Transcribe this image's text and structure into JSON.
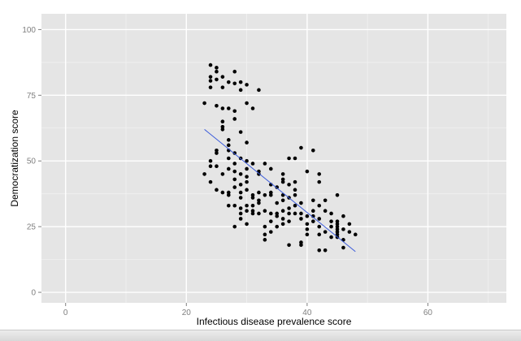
{
  "chart_data": {
    "type": "scatter",
    "title": "",
    "xlabel": "Infectious disease prevalence score",
    "ylabel": "Democratization score",
    "xlim": [
      -4,
      73
    ],
    "ylim": [
      -4,
      106
    ],
    "x_ticks": [
      0,
      20,
      40,
      60
    ],
    "y_ticks": [
      0,
      25,
      50,
      75,
      100
    ],
    "grid": true,
    "background": "#e5e5e5",
    "grid_color": "#ffffff",
    "point_color": "#000000",
    "fit_color": "#3b5bdb",
    "trend_line": {
      "type": "linear",
      "x": [
        23,
        48
      ],
      "y": [
        62,
        15.5
      ]
    },
    "points": [
      [
        24,
        86.5
      ],
      [
        25,
        85.5
      ],
      [
        25,
        84
      ],
      [
        26,
        82
      ],
      [
        24,
        82
      ],
      [
        24,
        80.5
      ],
      [
        25,
        81
      ],
      [
        27,
        80
      ],
      [
        28,
        79.5
      ],
      [
        29,
        80
      ],
      [
        30,
        79
      ],
      [
        28,
        84
      ],
      [
        26,
        78
      ],
      [
        29,
        77
      ],
      [
        32,
        77
      ],
      [
        24,
        78
      ],
      [
        23,
        72
      ],
      [
        25,
        71
      ],
      [
        26,
        70
      ],
      [
        27,
        70
      ],
      [
        28,
        69
      ],
      [
        31,
        70
      ],
      [
        30,
        72
      ],
      [
        26,
        65
      ],
      [
        26,
        63
      ],
      [
        28,
        66
      ],
      [
        29,
        61
      ],
      [
        30,
        57
      ],
      [
        27,
        58
      ],
      [
        27,
        56
      ],
      [
        28,
        53
      ],
      [
        29,
        51
      ],
      [
        25,
        53
      ],
      [
        25,
        54
      ],
      [
        27,
        54
      ],
      [
        30,
        50
      ],
      [
        31,
        49
      ],
      [
        33,
        49
      ],
      [
        34,
        47
      ],
      [
        32,
        46
      ],
      [
        32,
        45
      ],
      [
        30,
        44
      ],
      [
        30,
        42
      ],
      [
        28,
        43
      ],
      [
        29,
        45
      ],
      [
        27,
        47
      ],
      [
        26,
        45
      ],
      [
        25,
        48
      ],
      [
        24,
        50
      ],
      [
        24,
        48
      ],
      [
        23,
        45
      ],
      [
        24,
        42
      ],
      [
        25,
        39
      ],
      [
        26,
        38
      ],
      [
        27,
        38
      ],
      [
        28,
        40
      ],
      [
        29,
        41
      ],
      [
        28,
        46
      ],
      [
        30,
        39
      ],
      [
        31,
        37
      ],
      [
        32,
        38
      ],
      [
        29,
        36
      ],
      [
        27,
        37
      ],
      [
        27,
        33
      ],
      [
        28,
        33
      ],
      [
        29,
        32
      ],
      [
        29,
        30
      ],
      [
        29,
        28
      ],
      [
        30,
        31
      ],
      [
        30,
        26
      ],
      [
        31,
        33
      ],
      [
        31,
        30
      ],
      [
        32,
        30
      ],
      [
        32,
        35
      ],
      [
        33,
        37
      ],
      [
        34,
        41
      ],
      [
        34,
        38
      ],
      [
        35,
        34
      ],
      [
        35,
        40
      ],
      [
        36,
        43
      ],
      [
        36,
        42
      ],
      [
        36,
        37
      ],
      [
        36,
        35
      ],
      [
        37,
        41
      ],
      [
        37,
        36
      ],
      [
        37,
        32
      ],
      [
        37,
        30
      ],
      [
        38,
        42
      ],
      [
        38,
        39
      ],
      [
        38,
        37
      ],
      [
        38,
        33
      ],
      [
        38,
        30
      ],
      [
        39,
        55
      ],
      [
        38,
        51
      ],
      [
        37,
        51
      ],
      [
        40,
        46
      ],
      [
        41,
        54
      ],
      [
        39,
        34
      ],
      [
        39,
        30
      ],
      [
        39,
        28
      ],
      [
        40,
        29
      ],
      [
        40,
        26
      ],
      [
        40,
        24
      ],
      [
        41,
        35
      ],
      [
        41,
        31
      ],
      [
        41,
        29
      ],
      [
        41,
        27
      ],
      [
        42,
        45
      ],
      [
        42,
        42
      ],
      [
        42,
        33
      ],
      [
        42,
        28
      ],
      [
        42,
        25
      ],
      [
        42,
        22
      ],
      [
        42,
        16
      ],
      [
        43,
        35
      ],
      [
        43,
        31
      ],
      [
        43,
        23
      ],
      [
        43,
        16
      ],
      [
        44,
        30
      ],
      [
        44,
        27
      ],
      [
        44,
        25
      ],
      [
        45,
        37
      ],
      [
        45,
        27
      ],
      [
        45,
        26
      ],
      [
        45,
        25
      ],
      [
        45,
        24
      ],
      [
        45,
        23
      ],
      [
        45,
        22
      ],
      [
        45,
        21
      ],
      [
        46,
        29
      ],
      [
        46,
        24
      ],
      [
        46,
        20
      ],
      [
        46,
        17
      ],
      [
        47,
        26
      ],
      [
        47,
        23
      ],
      [
        48,
        22
      ],
      [
        37,
        27
      ],
      [
        36,
        28
      ],
      [
        35,
        30
      ],
      [
        34,
        30
      ],
      [
        36,
        26
      ],
      [
        35,
        25
      ],
      [
        34,
        23
      ],
      [
        33,
        22
      ],
      [
        33,
        25
      ],
      [
        33,
        20
      ],
      [
        37,
        18
      ],
      [
        39,
        18
      ],
      [
        39,
        19
      ],
      [
        40,
        22
      ],
      [
        36,
        31
      ],
      [
        31,
        36
      ],
      [
        30,
        33
      ],
      [
        31,
        31
      ],
      [
        28,
        25
      ],
      [
        29,
        38
      ],
      [
        36,
        45
      ],
      [
        35,
        29
      ],
      [
        34,
        27
      ],
      [
        30,
        47
      ],
      [
        26,
        62
      ],
      [
        27,
        51
      ],
      [
        28,
        49
      ],
      [
        33,
        31
      ],
      [
        34,
        37
      ],
      [
        32,
        34
      ],
      [
        44,
        21
      ]
    ]
  }
}
